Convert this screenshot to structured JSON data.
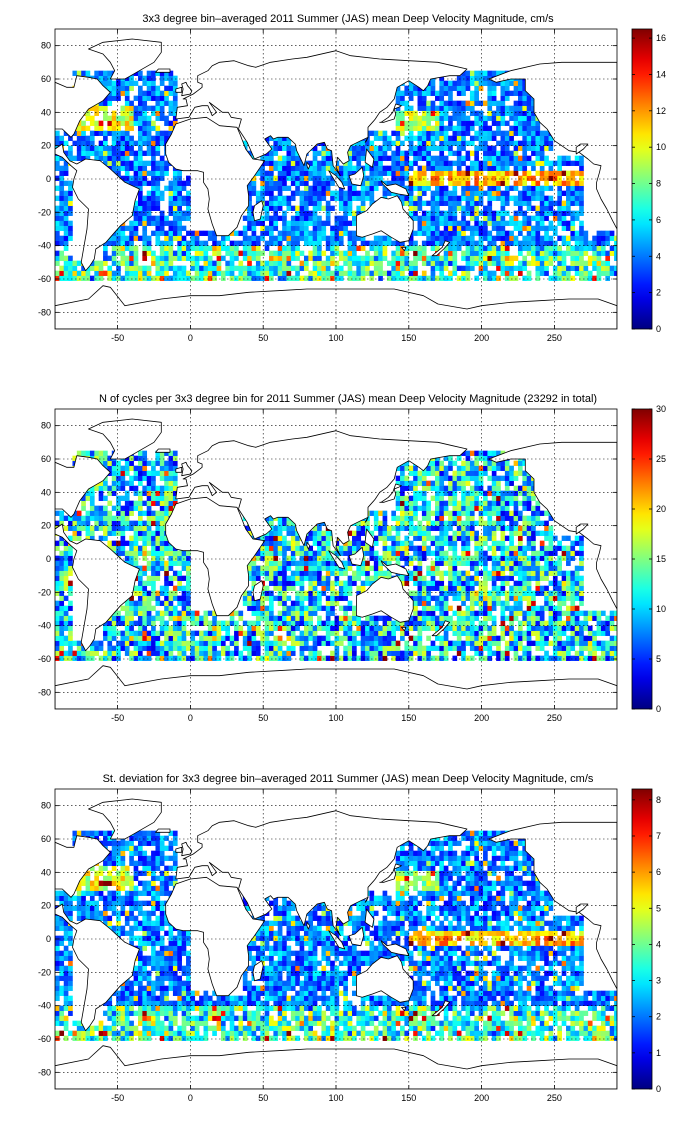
{
  "chart_data": [
    {
      "type": "heatmap",
      "name": "panel-mean",
      "title": "3x3 degree bin–averaged 2011 Summer (JAS) mean Deep Velocity Magnitude, cm/s",
      "xlim": [
        -93,
        293
      ],
      "ylim": [
        -90,
        90
      ],
      "xticks": [
        -50,
        0,
        50,
        100,
        150,
        200,
        250
      ],
      "yticks": [
        -80,
        -60,
        -40,
        -20,
        0,
        20,
        40,
        60,
        80
      ],
      "colorbar": {
        "min": 0,
        "max": 16.5,
        "ticks": [
          0,
          2,
          4,
          6,
          8,
          10,
          12,
          14,
          16
        ]
      },
      "bin_size_deg": 3,
      "grid": true,
      "field": "mean"
    },
    {
      "type": "heatmap",
      "name": "panel-count",
      "title": "N of cycles per 3x3 degree bin for 2011 Summer (JAS) mean Deep Velocity Magnitude (23292 in total)",
      "xlim": [
        -93,
        293
      ],
      "ylim": [
        -90,
        90
      ],
      "xticks": [
        -50,
        0,
        50,
        100,
        150,
        200,
        250
      ],
      "yticks": [
        -80,
        -60,
        -40,
        -20,
        0,
        20,
        40,
        60,
        80
      ],
      "colorbar": {
        "min": 0,
        "max": 30,
        "ticks": [
          0,
          5,
          10,
          15,
          20,
          25,
          30
        ]
      },
      "bin_size_deg": 3,
      "grid": true,
      "field": "count"
    },
    {
      "type": "heatmap",
      "name": "panel-std",
      "title": "St. deviation for 3x3 degree bin–averaged 2011 Summer (JAS) mean Deep Velocity Magnitude, cm/s",
      "xlim": [
        -93,
        293
      ],
      "ylim": [
        -90,
        90
      ],
      "xticks": [
        -50,
        0,
        50,
        100,
        150,
        200,
        250
      ],
      "yticks": [
        -80,
        -60,
        -40,
        -20,
        0,
        20,
        40,
        60,
        80
      ],
      "colorbar": {
        "min": 0,
        "max": 8.3,
        "ticks": [
          0,
          1,
          2,
          3,
          4,
          5,
          6,
          7,
          8
        ]
      },
      "bin_size_deg": 3,
      "grid": true,
      "field": "std"
    }
  ]
}
